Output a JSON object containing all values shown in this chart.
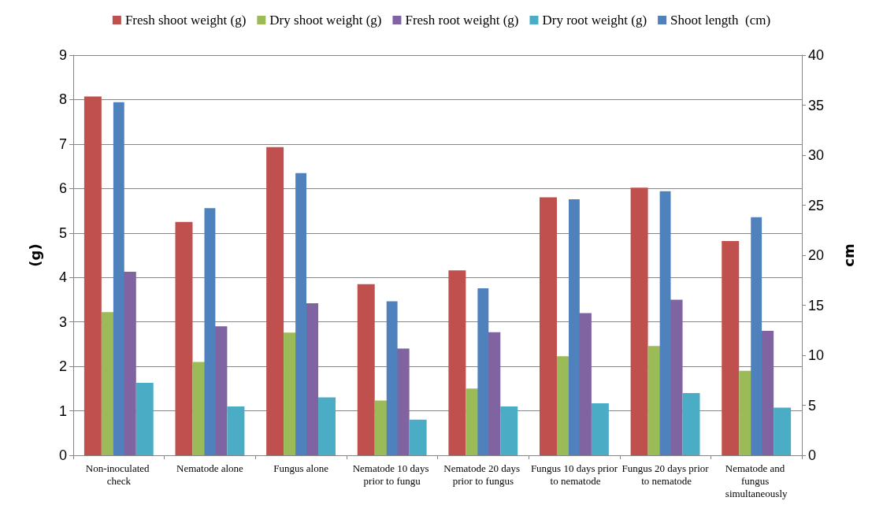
{
  "chart_data": {
    "type": "bar",
    "categories": [
      "Non-inoculated check",
      "Nematode alone",
      "Fungus alone",
      "Nematode 10 days prior to fungu",
      "Nematode 20 days prior to fungus",
      "Fungus 10 days prior to nematode",
      "Fungus 20 days prior to nematode",
      "Nematode and fungus simultaneously"
    ],
    "series": [
      {
        "name": "Fresh shoot weight (g)",
        "color": "#c0504d",
        "values": [
          8.07,
          5.25,
          6.93,
          3.85,
          4.16,
          5.8,
          6.02,
          4.82
        ]
      },
      {
        "name": "Dry shoot weight (g)",
        "color": "#9bbb59",
        "values": [
          3.22,
          2.1,
          2.76,
          1.23,
          1.5,
          2.23,
          2.46,
          1.9
        ]
      },
      {
        "name": "Fresh root weight (g)",
        "color": "#8064a2",
        "values": [
          4.13,
          2.9,
          3.42,
          2.4,
          2.77,
          3.2,
          3.5,
          2.8
        ]
      },
      {
        "name": "Dry root weight (g)",
        "color": "#4bacc6",
        "values": [
          1.63,
          1.1,
          1.3,
          0.8,
          1.1,
          1.17,
          1.4,
          1.07
        ]
      },
      {
        "name": "Shoot length  (cm)",
        "color": "#4f81bd",
        "axis": "y2",
        "values": [
          35.3,
          24.7,
          28.2,
          15.4,
          16.7,
          25.6,
          26.4,
          23.8
        ]
      }
    ],
    "ylabel": "(g)",
    "y2label": "cm",
    "ylim": [
      0,
      9
    ],
    "yticks": [
      0,
      1,
      2,
      3,
      4,
      5,
      6,
      7,
      8,
      9
    ],
    "y2lim": [
      0,
      40
    ],
    "y2ticks": [
      0,
      5,
      10,
      15,
      20,
      25,
      30,
      35,
      40
    ],
    "grid": "y",
    "legend": "top"
  }
}
